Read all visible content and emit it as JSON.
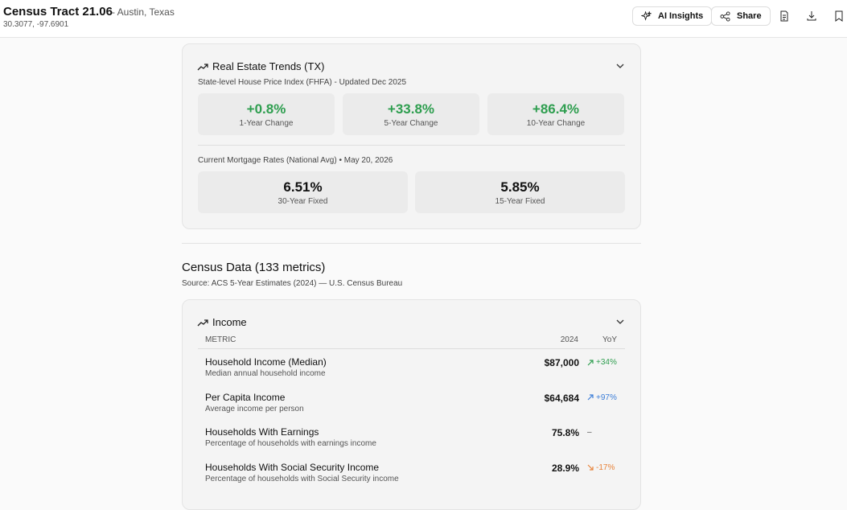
{
  "header": {
    "title": "Census Tract 21.06",
    "location": "- Austin, Texas",
    "coords": "30.3077, -97.6901",
    "buttons": [
      "AI Insights",
      "Share"
    ]
  },
  "real_estate": {
    "title": "Real Estate Trends (TX)",
    "subtitle": "State-level House Price Index (FHFA) - Updated Dec 2025",
    "hpi": [
      {
        "value": "+0.8%",
        "label": "1-Year Change"
      },
      {
        "value": "+33.8%",
        "label": "5-Year Change"
      },
      {
        "value": "+86.4%",
        "label": "10-Year Change"
      }
    ],
    "mortgage_title": "Current Mortgage Rates (National Avg) • May 20, 2026",
    "rates": [
      {
        "value": "6.51%",
        "label": "30-Year Fixed"
      },
      {
        "value": "5.85%",
        "label": "15-Year Fixed"
      }
    ]
  },
  "census": {
    "title": "Census Data (133 metrics)",
    "source": "Source: ACS 5-Year Estimates (2024) — U.S. Census Bureau"
  },
  "income": {
    "title": "Income",
    "columns": [
      "METRIC",
      "2024",
      "YoY"
    ],
    "rows": [
      {
        "name": "Household Income (Median)",
        "desc": "Median annual household income",
        "value": "$87,000",
        "yoy": "+34%",
        "trend": "up",
        "color": "#2e9e4f"
      },
      {
        "name": "Per Capita Income",
        "desc": "Average income per person",
        "value": "$64,684",
        "yoy": "+97%",
        "trend": "up",
        "color": "#3b7dd8"
      },
      {
        "name": "Households With Earnings",
        "desc": "Percentage of households with earnings income",
        "value": "75.8%",
        "yoy": "–",
        "trend": "flat",
        "color": "#555555"
      },
      {
        "name": "Households With Social Security Income",
        "desc": "Percentage of households with Social Security income",
        "value": "28.9%",
        "yoy": "-17%",
        "trend": "down",
        "color": "#e8833a"
      }
    ]
  }
}
